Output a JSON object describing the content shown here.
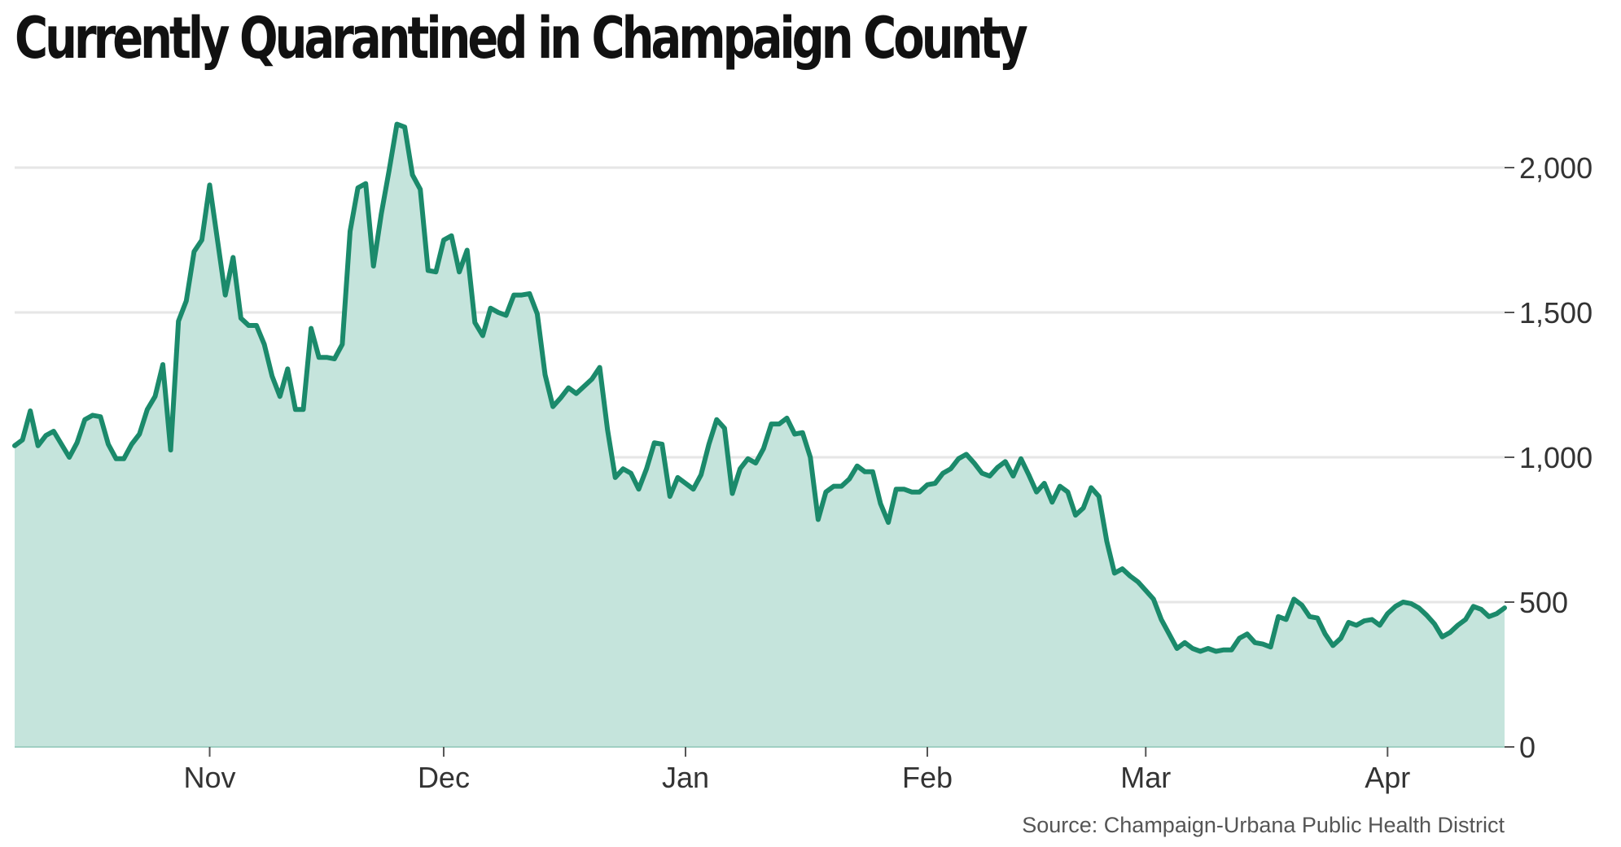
{
  "chart_data": {
    "type": "area",
    "title": "Currently Quarantined in Champaign County",
    "source": "Source: Champaign-Urbana Public Health District",
    "xlabel": "",
    "ylabel": "",
    "ylim": [
      0,
      2000
    ],
    "y_ticks": [
      {
        "value": 0,
        "label": "0"
      },
      {
        "value": 500,
        "label": "500"
      },
      {
        "value": 1000,
        "label": "1,000"
      },
      {
        "value": 1500,
        "label": "1,500"
      },
      {
        "value": 2000,
        "label": "2,000"
      }
    ],
    "x_ticks": [
      {
        "day": 25,
        "label": "Nov"
      },
      {
        "day": 55,
        "label": "Dec"
      },
      {
        "day": 86,
        "label": "Jan"
      },
      {
        "day": 117,
        "label": "Feb"
      },
      {
        "day": 145,
        "label": "Mar"
      },
      {
        "day": 176,
        "label": "Apr"
      }
    ],
    "grid": true,
    "colors": {
      "line": "#1b8a6b",
      "fill": "#c5e4dc",
      "grid": "#e6e6e6",
      "axis": "#555555"
    },
    "series": [
      {
        "name": "",
        "x_start_date": "2020-10-07",
        "values": [
          1040,
          1060,
          1160,
          1040,
          1075,
          1090,
          1045,
          1000,
          1050,
          1130,
          1145,
          1140,
          1045,
          995,
          995,
          1045,
          1080,
          1165,
          1210,
          1320,
          1025,
          1470,
          1540,
          1710,
          1750,
          1940,
          1750,
          1560,
          1690,
          1480,
          1455,
          1455,
          1390,
          1280,
          1210,
          1305,
          1165,
          1165,
          1445,
          1345,
          1345,
          1340,
          1390,
          1780,
          1930,
          1945,
          1660,
          1840,
          1990,
          2150,
          2140,
          1975,
          1925,
          1645,
          1640,
          1750,
          1765,
          1640,
          1715,
          1465,
          1420,
          1515,
          1500,
          1490,
          1560,
          1560,
          1565,
          1495,
          1285,
          1175,
          1205,
          1240,
          1220,
          1245,
          1270,
          1310,
          1095,
          930,
          960,
          945,
          890,
          960,
          1050,
          1045,
          865,
          930,
          910,
          890,
          940,
          1045,
          1130,
          1100,
          875,
          960,
          995,
          980,
          1030,
          1115,
          1115,
          1135,
          1080,
          1085,
          1000,
          785,
          880,
          900,
          900,
          925,
          970,
          950,
          950,
          840,
          775,
          890,
          890,
          880,
          880,
          905,
          910,
          945,
          960,
          995,
          1010,
          980,
          945,
          935,
          965,
          985,
          935,
          995,
          940,
          880,
          910,
          845,
          900,
          880,
          800,
          825,
          895,
          865,
          710,
          600,
          615,
          590,
          570,
          540,
          510,
          440,
          390,
          340,
          360,
          340,
          330,
          340,
          330,
          335,
          335,
          375,
          390,
          360,
          355,
          345,
          450,
          440,
          510,
          490,
          450,
          445,
          390,
          350,
          375,
          430,
          420,
          435,
          440,
          420,
          460,
          485,
          500,
          495,
          480,
          455,
          425,
          380,
          395,
          420,
          440,
          485,
          475,
          450,
          460,
          480
        ]
      }
    ]
  }
}
